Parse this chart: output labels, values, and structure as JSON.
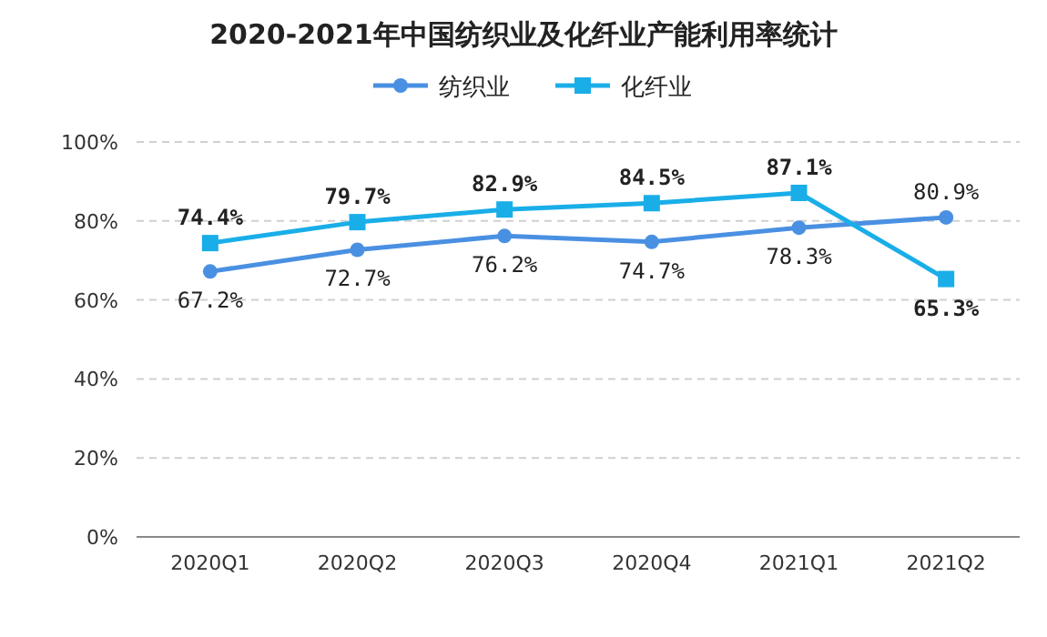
{
  "chart_data": {
    "type": "line",
    "title": "2020-2021年中国纺织业及化纤业产能利用率统计",
    "categories": [
      "2020Q1",
      "2020Q2",
      "2020Q3",
      "2020Q4",
      "2021Q1",
      "2021Q2"
    ],
    "series": [
      {
        "name": "纺织业",
        "color": "#4a90e2",
        "marker": "circle",
        "values": [
          67.2,
          72.7,
          76.2,
          74.7,
          78.3,
          80.9
        ],
        "value_labels": [
          "67.2%",
          "72.7%",
          "76.2%",
          "74.7%",
          "78.3%",
          "80.9%"
        ]
      },
      {
        "name": "化纤业",
        "color": "#1aaee8",
        "marker": "square",
        "values": [
          74.4,
          79.7,
          82.9,
          84.5,
          87.1,
          65.3
        ],
        "value_labels": [
          "74.4%",
          "79.7%",
          "82.9%",
          "84.5%",
          "87.1%",
          "65.3%"
        ]
      }
    ],
    "ylim": [
      0,
      100
    ],
    "yticks": [
      {
        "value": 0,
        "label": "0%"
      },
      {
        "value": 20,
        "label": "20%"
      },
      {
        "value": 40,
        "label": "40%"
      },
      {
        "value": 60,
        "label": "60%"
      },
      {
        "value": 80,
        "label": "80%"
      },
      {
        "value": 100,
        "label": "100%"
      }
    ],
    "grid": "y",
    "legend": "top"
  }
}
